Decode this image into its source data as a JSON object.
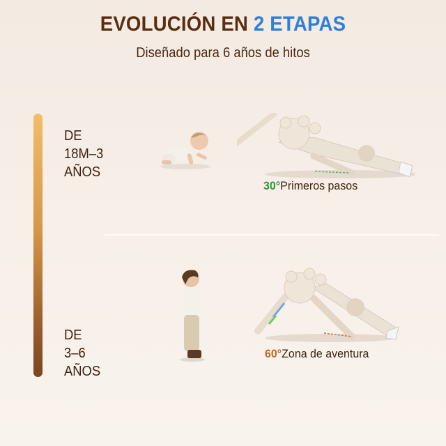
{
  "header": {
    "title_main": "EVOLUCIÓN EN ",
    "title_accent": "2 ETAPAS",
    "subtitle": "Diseñado para 6 años de hitos"
  },
  "stages": [
    {
      "line1": "DE",
      "line2": "18M–3",
      "line3": "AÑOS",
      "angle": "30°",
      "caption": "Primeros pasos",
      "angle_color": "#2d9a3a"
    },
    {
      "line1": "DE",
      "line2": "3–6",
      "line3": "AÑOS",
      "angle": "60°",
      "caption": "Zona de aventura",
      "angle_color": "#bf6a22"
    }
  ],
  "colors": {
    "title": "#5a2d12",
    "accent": "#2f80d8",
    "timeline_top": "#f3bd68",
    "timeline_bottom": "#7a4520"
  }
}
